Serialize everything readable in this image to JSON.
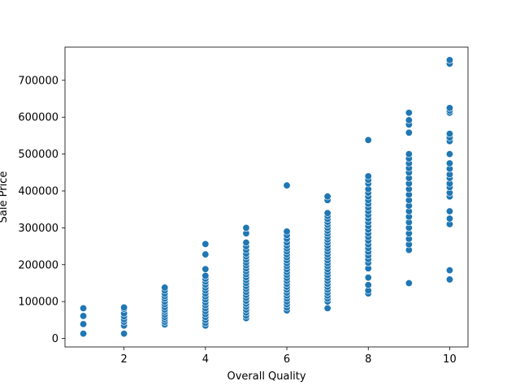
{
  "chart_data": {
    "type": "scatter",
    "title": "",
    "xlabel": "Overall Quality",
    "ylabel": "Sale Price",
    "xlim": [
      0.55,
      10.45
    ],
    "ylim": [
      -23000,
      790000
    ],
    "xticks": [
      2,
      4,
      6,
      8,
      10
    ],
    "yticks": [
      0,
      100000,
      200000,
      300000,
      400000,
      500000,
      600000,
      700000
    ],
    "grid": false,
    "legend": "none",
    "marker_color": "#1f77b4",
    "points": [
      [
        1,
        13000
      ],
      [
        1,
        39000
      ],
      [
        1,
        61000
      ],
      [
        1,
        82000
      ],
      [
        2,
        13000
      ],
      [
        2,
        35000
      ],
      [
        2,
        45000
      ],
      [
        2,
        52000
      ],
      [
        2,
        60000
      ],
      [
        2,
        68000
      ],
      [
        2,
        80000
      ],
      [
        2,
        84000
      ],
      [
        3,
        38000
      ],
      [
        3,
        45000
      ],
      [
        3,
        52000
      ],
      [
        3,
        58000
      ],
      [
        3,
        65000
      ],
      [
        3,
        72000
      ],
      [
        3,
        78000
      ],
      [
        3,
        85000
      ],
      [
        3,
        93000
      ],
      [
        3,
        100000
      ],
      [
        3,
        108000
      ],
      [
        3,
        115000
      ],
      [
        3,
        122000
      ],
      [
        3,
        130000
      ],
      [
        3,
        138000
      ],
      [
        4,
        35000
      ],
      [
        4,
        42000
      ],
      [
        4,
        50000
      ],
      [
        4,
        58000
      ],
      [
        4,
        66000
      ],
      [
        4,
        74000
      ],
      [
        4,
        82000
      ],
      [
        4,
        90000
      ],
      [
        4,
        98000
      ],
      [
        4,
        106000
      ],
      [
        4,
        114000
      ],
      [
        4,
        122000
      ],
      [
        4,
        130000
      ],
      [
        4,
        138000
      ],
      [
        4,
        146000
      ],
      [
        4,
        154000
      ],
      [
        4,
        162000
      ],
      [
        4,
        170000
      ],
      [
        4,
        188000
      ],
      [
        4,
        228000
      ],
      [
        4,
        256000
      ],
      [
        5,
        55000
      ],
      [
        5,
        62000
      ],
      [
        5,
        70000
      ],
      [
        5,
        78000
      ],
      [
        5,
        86000
      ],
      [
        5,
        94000
      ],
      [
        5,
        102000
      ],
      [
        5,
        110000
      ],
      [
        5,
        118000
      ],
      [
        5,
        126000
      ],
      [
        5,
        134000
      ],
      [
        5,
        142000
      ],
      [
        5,
        150000
      ],
      [
        5,
        158000
      ],
      [
        5,
        166000
      ],
      [
        5,
        174000
      ],
      [
        5,
        182000
      ],
      [
        5,
        190000
      ],
      [
        5,
        198000
      ],
      [
        5,
        206000
      ],
      [
        5,
        214000
      ],
      [
        5,
        222000
      ],
      [
        5,
        230000
      ],
      [
        5,
        240000
      ],
      [
        5,
        250000
      ],
      [
        5,
        260000
      ],
      [
        5,
        285000
      ],
      [
        5,
        300000
      ],
      [
        6,
        76000
      ],
      [
        6,
        84000
      ],
      [
        6,
        92000
      ],
      [
        6,
        100000
      ],
      [
        6,
        108000
      ],
      [
        6,
        116000
      ],
      [
        6,
        124000
      ],
      [
        6,
        132000
      ],
      [
        6,
        140000
      ],
      [
        6,
        148000
      ],
      [
        6,
        156000
      ],
      [
        6,
        164000
      ],
      [
        6,
        172000
      ],
      [
        6,
        180000
      ],
      [
        6,
        188000
      ],
      [
        6,
        196000
      ],
      [
        6,
        204000
      ],
      [
        6,
        212000
      ],
      [
        6,
        220000
      ],
      [
        6,
        228000
      ],
      [
        6,
        236000
      ],
      [
        6,
        244000
      ],
      [
        6,
        252000
      ],
      [
        6,
        260000
      ],
      [
        6,
        270000
      ],
      [
        6,
        280000
      ],
      [
        6,
        290000
      ],
      [
        6,
        415000
      ],
      [
        7,
        82000
      ],
      [
        7,
        100000
      ],
      [
        7,
        108000
      ],
      [
        7,
        116000
      ],
      [
        7,
        124000
      ],
      [
        7,
        132000
      ],
      [
        7,
        140000
      ],
      [
        7,
        148000
      ],
      [
        7,
        156000
      ],
      [
        7,
        164000
      ],
      [
        7,
        172000
      ],
      [
        7,
        180000
      ],
      [
        7,
        188000
      ],
      [
        7,
        196000
      ],
      [
        7,
        204000
      ],
      [
        7,
        212000
      ],
      [
        7,
        220000
      ],
      [
        7,
        228000
      ],
      [
        7,
        236000
      ],
      [
        7,
        244000
      ],
      [
        7,
        252000
      ],
      [
        7,
        260000
      ],
      [
        7,
        268000
      ],
      [
        7,
        276000
      ],
      [
        7,
        284000
      ],
      [
        7,
        292000
      ],
      [
        7,
        300000
      ],
      [
        7,
        308000
      ],
      [
        7,
        316000
      ],
      [
        7,
        324000
      ],
      [
        7,
        332000
      ],
      [
        7,
        340000
      ],
      [
        7,
        375000
      ],
      [
        7,
        385000
      ],
      [
        8,
        122000
      ],
      [
        8,
        130000
      ],
      [
        8,
        145000
      ],
      [
        8,
        165000
      ],
      [
        8,
        190000
      ],
      [
        8,
        205000
      ],
      [
        8,
        215000
      ],
      [
        8,
        225000
      ],
      [
        8,
        235000
      ],
      [
        8,
        245000
      ],
      [
        8,
        255000
      ],
      [
        8,
        265000
      ],
      [
        8,
        275000
      ],
      [
        8,
        285000
      ],
      [
        8,
        295000
      ],
      [
        8,
        305000
      ],
      [
        8,
        315000
      ],
      [
        8,
        325000
      ],
      [
        8,
        335000
      ],
      [
        8,
        345000
      ],
      [
        8,
        355000
      ],
      [
        8,
        365000
      ],
      [
        8,
        375000
      ],
      [
        8,
        385000
      ],
      [
        8,
        395000
      ],
      [
        8,
        405000
      ],
      [
        8,
        420000
      ],
      [
        8,
        430000
      ],
      [
        8,
        440000
      ],
      [
        8,
        538000
      ],
      [
        9,
        150000
      ],
      [
        9,
        240000
      ],
      [
        9,
        255000
      ],
      [
        9,
        270000
      ],
      [
        9,
        285000
      ],
      [
        9,
        300000
      ],
      [
        9,
        315000
      ],
      [
        9,
        330000
      ],
      [
        9,
        345000
      ],
      [
        9,
        360000
      ],
      [
        9,
        375000
      ],
      [
        9,
        390000
      ],
      [
        9,
        405000
      ],
      [
        9,
        420000
      ],
      [
        9,
        435000
      ],
      [
        9,
        450000
      ],
      [
        9,
        462000
      ],
      [
        9,
        475000
      ],
      [
        9,
        488000
      ],
      [
        9,
        500000
      ],
      [
        9,
        558000
      ],
      [
        9,
        580000
      ],
      [
        9,
        592000
      ],
      [
        9,
        612000
      ],
      [
        10,
        160000
      ],
      [
        10,
        185000
      ],
      [
        10,
        310000
      ],
      [
        10,
        325000
      ],
      [
        10,
        345000
      ],
      [
        10,
        385000
      ],
      [
        10,
        395000
      ],
      [
        10,
        410000
      ],
      [
        10,
        420000
      ],
      [
        10,
        435000
      ],
      [
        10,
        445000
      ],
      [
        10,
        460000
      ],
      [
        10,
        475000
      ],
      [
        10,
        500000
      ],
      [
        10,
        535000
      ],
      [
        10,
        545000
      ],
      [
        10,
        555000
      ],
      [
        10,
        612000
      ],
      [
        10,
        618000
      ],
      [
        10,
        625000
      ],
      [
        10,
        745000
      ],
      [
        10,
        755000
      ]
    ]
  }
}
